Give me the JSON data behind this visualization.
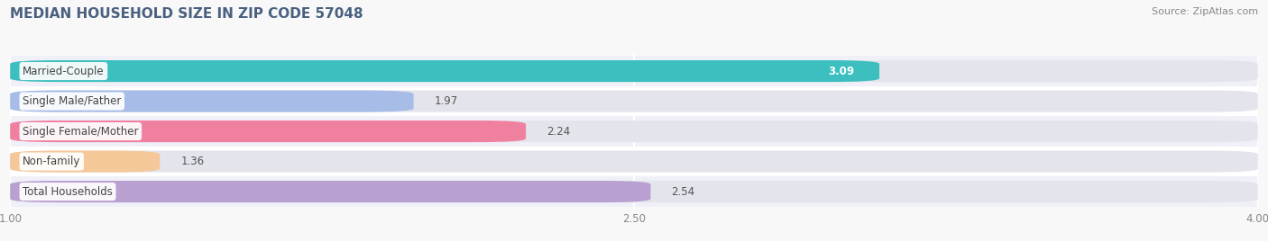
{
  "title": "MEDIAN HOUSEHOLD SIZE IN ZIP CODE 57048",
  "source": "Source: ZipAtlas.com",
  "categories": [
    "Married-Couple",
    "Single Male/Father",
    "Single Female/Mother",
    "Non-family",
    "Total Households"
  ],
  "values": [
    3.09,
    1.97,
    2.24,
    1.36,
    2.54
  ],
  "bar_colors": [
    "#3dbfbf",
    "#a8bce8",
    "#f080a0",
    "#f5c89a",
    "#b8a0d0"
  ],
  "bar_bg_color": "#e4e4ec",
  "row_bg_colors": [
    "#f0f0f8",
    "#ffffff"
  ],
  "xlim": [
    1.0,
    4.0
  ],
  "xticks": [
    1.0,
    2.5,
    4.0
  ],
  "xtick_labels": [
    "1.00",
    "2.50",
    "4.00"
  ],
  "label_fontsize": 8.5,
  "value_fontsize": 8.5,
  "title_fontsize": 11,
  "source_fontsize": 8,
  "title_color": "#4a6080",
  "label_color": "#444444",
  "value_label_inside_color": "#ffffff",
  "background_color": "#f8f8f8"
}
